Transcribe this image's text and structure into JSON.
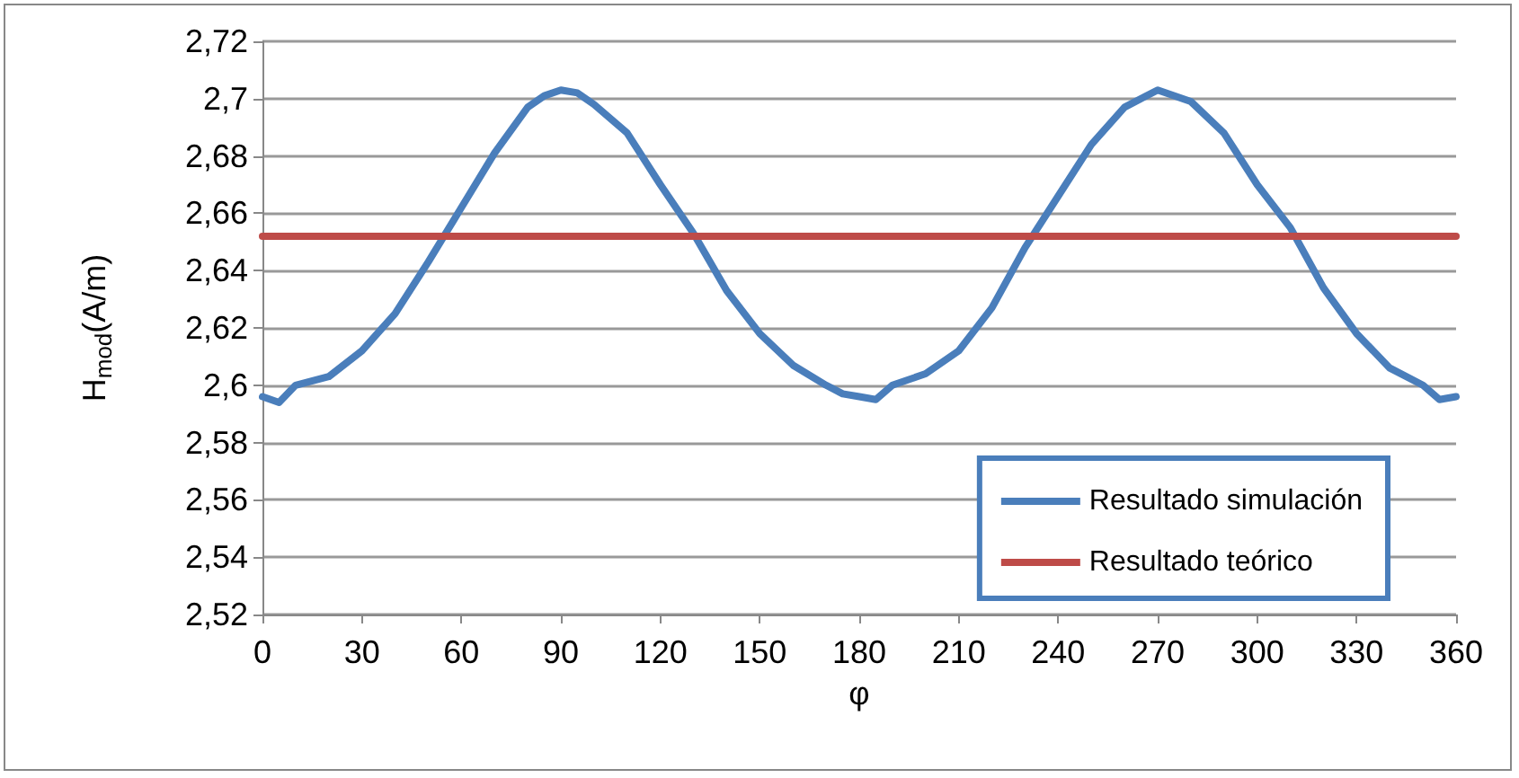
{
  "chart_data": {
    "type": "line",
    "xlabel": "φ",
    "ylabel": "H$_{mod}$(A/m)",
    "xlim": [
      0,
      360
    ],
    "xticks": [
      0,
      30,
      60,
      90,
      120,
      150,
      180,
      210,
      240,
      270,
      300,
      330,
      360
    ],
    "ylim": [
      2.52,
      2.72
    ],
    "yticks": [
      {
        "value": 2.52,
        "label": "2,52"
      },
      {
        "value": 2.54,
        "label": "2,54"
      },
      {
        "value": 2.56,
        "label": "2,56"
      },
      {
        "value": 2.58,
        "label": "2,58"
      },
      {
        "value": 2.6,
        "label": "2,6"
      },
      {
        "value": 2.62,
        "label": "2,62"
      },
      {
        "value": 2.64,
        "label": "2,64"
      },
      {
        "value": 2.66,
        "label": "2,66"
      },
      {
        "value": 2.68,
        "label": "2,68"
      },
      {
        "value": 2.7,
        "label": "2,7"
      },
      {
        "value": 2.72,
        "label": "2,72"
      }
    ],
    "grid": "y",
    "legend": "bottom right",
    "marker": "none",
    "line_style": "solid",
    "series": [
      {
        "name": "Resultado simulación",
        "color": "#4a7ebb",
        "x": [
          0,
          5,
          10,
          20,
          30,
          40,
          50,
          60,
          70,
          80,
          85,
          90,
          95,
          100,
          110,
          120,
          130,
          140,
          150,
          160,
          170,
          175,
          180,
          185,
          190,
          200,
          210,
          220,
          230,
          240,
          250,
          260,
          270,
          280,
          290,
          300,
          310,
          320,
          330,
          340,
          350,
          355,
          360
        ],
        "values": [
          2.596,
          2.594,
          2.6,
          2.603,
          2.612,
          2.625,
          2.643,
          2.662,
          2.681,
          2.697,
          2.701,
          2.703,
          2.702,
          2.698,
          2.688,
          2.67,
          2.653,
          2.633,
          2.618,
          2.607,
          2.6,
          2.597,
          2.596,
          2.595,
          2.6,
          2.604,
          2.612,
          2.627,
          2.648,
          2.666,
          2.684,
          2.697,
          2.703,
          2.699,
          2.688,
          2.67,
          2.655,
          2.634,
          2.618,
          2.606,
          2.6,
          2.595,
          2.596
        ]
      },
      {
        "name": "Resultado teórico",
        "color": "#be4b48",
        "x": [
          0,
          360
        ],
        "values": [
          2.652,
          2.652
        ]
      }
    ]
  }
}
